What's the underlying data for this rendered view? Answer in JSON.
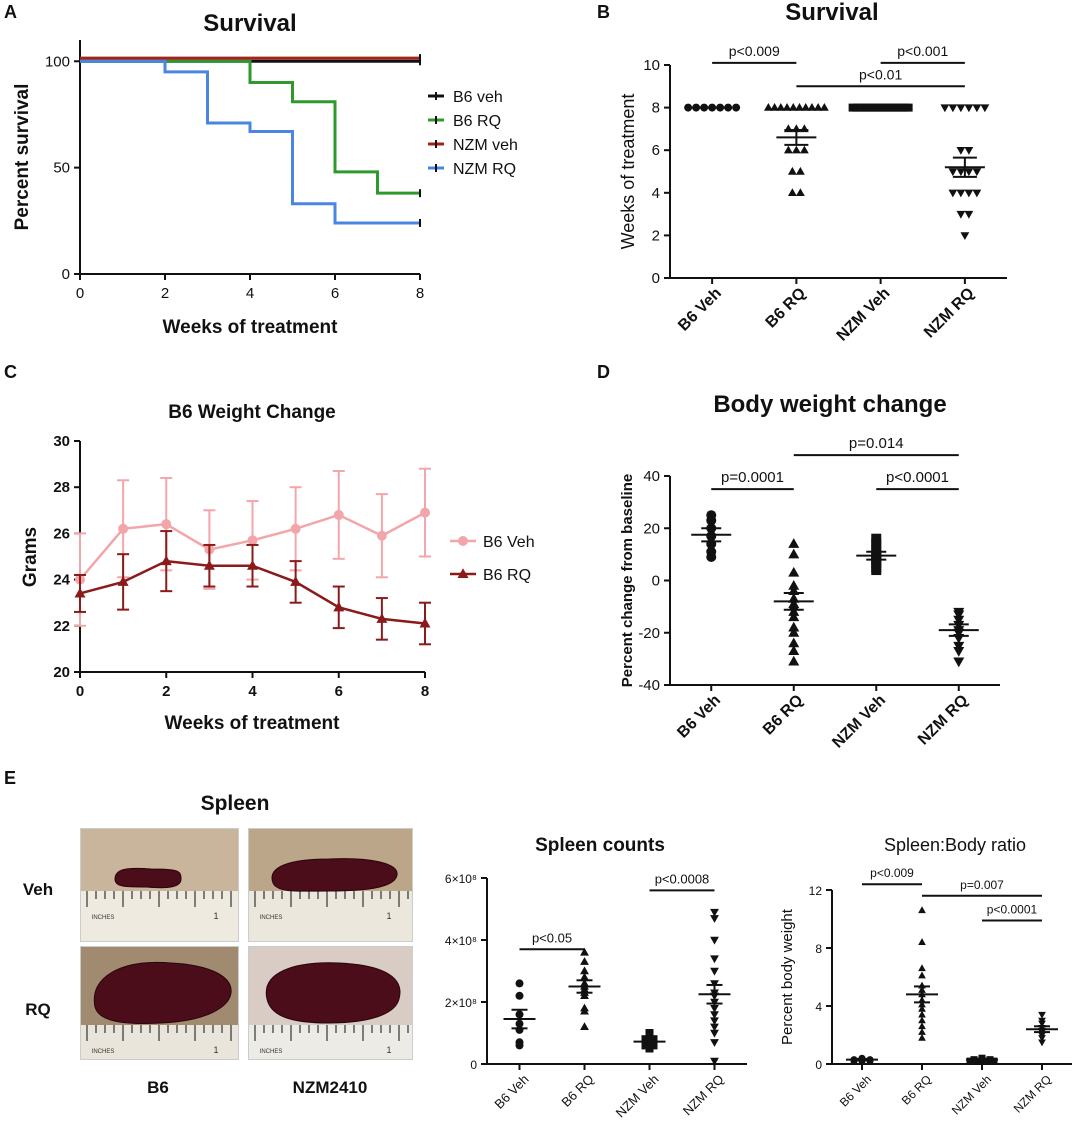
{
  "chart_data": [
    {
      "panel": "A",
      "type": "line",
      "step": true,
      "title": "Survival",
      "xlabel": "Weeks of treatment",
      "ylabel": "Percent survival",
      "xlim": [
        0,
        8
      ],
      "ylim": [
        0,
        110
      ],
      "xticks": [
        0,
        2,
        4,
        6,
        8
      ],
      "yticks": [
        0,
        50,
        100
      ],
      "legend_position": "right",
      "series": [
        {
          "name": "B6 veh",
          "color": "#111111",
          "x": [
            0,
            8
          ],
          "y": [
            100,
            100
          ]
        },
        {
          "name": "B6 RQ",
          "color": "#2e9a2e",
          "x": [
            0,
            4,
            5,
            6,
            7,
            8
          ],
          "y": [
            100,
            90,
            81,
            48,
            38,
            38
          ]
        },
        {
          "name": "NZM veh",
          "color": "#a3231b",
          "x": [
            0,
            8
          ],
          "y": [
            101.5,
            101.5
          ]
        },
        {
          "name": "NZM RQ",
          "color": "#4a86e0",
          "x": [
            0,
            2,
            3,
            4,
            5,
            6,
            8
          ],
          "y": [
            100,
            95,
            71,
            67,
            33,
            24,
            24
          ]
        }
      ]
    },
    {
      "panel": "B",
      "type": "scatter",
      "title": "Survival",
      "ylabel": "Weeks of treatment",
      "ylim": [
        0,
        10
      ],
      "yticks": [
        0,
        2,
        4,
        6,
        8,
        10
      ],
      "categories": [
        "B6 Veh",
        "B6 RQ",
        "NZM Veh",
        "NZM RQ"
      ],
      "markers": [
        "circle",
        "triangle",
        "square",
        "triangle-down"
      ],
      "values": [
        [
          8,
          8,
          8,
          8,
          8,
          8,
          8
        ],
        [
          8,
          8,
          8,
          8,
          8,
          8,
          8,
          8,
          8,
          8,
          7,
          7,
          7,
          6,
          6,
          6,
          5,
          5,
          4,
          4
        ],
        [
          8,
          8,
          8,
          8,
          8,
          8,
          8,
          8,
          8,
          8,
          8,
          8,
          8,
          8,
          8,
          8
        ],
        [
          8,
          8,
          8,
          8,
          8,
          8,
          6,
          6,
          5,
          5,
          5,
          5,
          4,
          4,
          4,
          4,
          3,
          3,
          2
        ]
      ],
      "means": [
        8,
        6.6,
        8,
        5.2
      ],
      "sems": [
        0,
        0.35,
        0,
        0.45
      ],
      "significance": [
        {
          "from": 0,
          "to": 1,
          "y": 10.1,
          "label": "p<0.009"
        },
        {
          "from": 2,
          "to": 3,
          "y": 10.1,
          "label": "p<0.001"
        },
        {
          "from": 1,
          "to": 3,
          "y": 9.0,
          "label": "p<0.01"
        }
      ]
    },
    {
      "panel": "C",
      "type": "line",
      "title": "B6 Weight Change",
      "xlabel": "Weeks of treatment",
      "ylabel": "Grams",
      "xlim": [
        0,
        8
      ],
      "ylim": [
        20,
        30
      ],
      "xticks": [
        0,
        2,
        4,
        6,
        8
      ],
      "yticks": [
        20,
        22,
        24,
        26,
        28,
        30
      ],
      "legend_position": "right",
      "series": [
        {
          "name": "B6 Veh",
          "color": "#f3a6aa",
          "marker": "circle",
          "x": [
            0,
            1,
            2,
            3,
            4,
            5,
            6,
            7,
            8
          ],
          "y": [
            24,
            26.2,
            26.4,
            25.3,
            25.7,
            26.2,
            26.8,
            25.9,
            26.9
          ],
          "err": [
            2,
            2.1,
            2,
            1.7,
            1.7,
            1.8,
            1.9,
            1.8,
            1.9
          ]
        },
        {
          "name": "B6 RQ",
          "color": "#8b1a1a",
          "marker": "triangle",
          "x": [
            0,
            1,
            2,
            3,
            4,
            5,
            6,
            7,
            8
          ],
          "y": [
            23.4,
            23.9,
            24.8,
            24.6,
            24.6,
            23.9,
            22.8,
            22.3,
            22.1
          ],
          "err": [
            0.8,
            1.2,
            1.3,
            0.9,
            0.9,
            0.9,
            0.9,
            0.9,
            0.9
          ]
        }
      ]
    },
    {
      "panel": "D",
      "type": "scatter",
      "title": "Body weight change",
      "ylabel": "Percent change from baseline",
      "ylim": [
        -40,
        40
      ],
      "yticks": [
        -40,
        -20,
        0,
        20,
        40
      ],
      "categories": [
        "B6 Veh",
        "B6 RQ",
        "NZM Veh",
        "NZM RQ"
      ],
      "markers": [
        "circle",
        "triangle",
        "square",
        "triangle-down"
      ],
      "values": [
        [
          25,
          23,
          20,
          17,
          14,
          11,
          9
        ],
        [
          14,
          10,
          3,
          -2,
          -4,
          -7,
          -9,
          -10,
          -12,
          -14,
          -18,
          -20,
          -24,
          -27,
          -31
        ],
        [
          16,
          14,
          12,
          10,
          9,
          8,
          7,
          5,
          4
        ],
        [
          -12,
          -13,
          -15,
          -17,
          -19,
          -20,
          -22,
          -25,
          -27,
          -31
        ]
      ],
      "means": [
        17.5,
        -8,
        9.5,
        -19
      ],
      "sems": [
        2.5,
        3.2,
        1.5,
        2.2
      ],
      "significance": [
        {
          "from": 0,
          "to": 1,
          "y": 35,
          "label": "p=0.0001"
        },
        {
          "from": 2,
          "to": 3,
          "y": 35,
          "label": "p<0.0001"
        },
        {
          "from": 1,
          "to": 3,
          "y": 48,
          "label": "p=0.014"
        }
      ]
    },
    {
      "panel": "E-counts",
      "type": "scatter",
      "title": "Spleen counts",
      "ylim": [
        0,
        6
      ],
      "ytick_labels": [
        "0",
        "2×10⁸",
        "4×10⁸",
        "6×10⁸"
      ],
      "categories": [
        "B6 Veh",
        "B6 RQ",
        "NZM Veh",
        "NZM RQ"
      ],
      "markers": [
        "circle",
        "triangle",
        "square",
        "triangle-down"
      ],
      "values": [
        [
          2.6,
          2.2,
          1.6,
          1.3,
          1.1,
          0.7,
          0.6
        ],
        [
          3.6,
          3.3,
          3.0,
          2.8,
          2.6,
          2.5,
          2.4,
          2.3,
          2.2,
          1.8,
          1.7,
          1.2
        ],
        [
          1.0,
          0.8,
          0.8,
          0.7,
          0.7,
          0.6,
          0.6,
          0.5
        ],
        [
          4.9,
          4.7,
          4.0,
          3.4,
          3.0,
          2.6,
          2.3,
          2.2,
          2.0,
          1.8,
          1.6,
          1.4,
          1.2,
          1.0,
          0.7,
          0.1
        ]
      ],
      "means": [
        1.45,
        2.5,
        0.72,
        2.25
      ],
      "sems": [
        0.3,
        0.2,
        0.08,
        0.3
      ],
      "significance": [
        {
          "from": 0,
          "to": 1,
          "y": 3.7,
          "label": "p<0.05"
        },
        {
          "from": 2,
          "to": 3,
          "y": 5.6,
          "label": "p<0.0008"
        }
      ]
    },
    {
      "panel": "E-ratio",
      "type": "scatter",
      "title": "Spleen:Body ratio",
      "ylabel": "Percent body weight",
      "ylim": [
        0,
        12
      ],
      "yticks": [
        0,
        4,
        8,
        12
      ],
      "categories": [
        "B6 Veh",
        "B6 RQ",
        "NZM Veh",
        "NZM RQ"
      ],
      "markers": [
        "circle",
        "triangle",
        "square",
        "triangle-down"
      ],
      "values": [
        [
          0.4,
          0.3,
          0.3,
          0.2,
          0.2,
          0.2,
          0.3
        ],
        [
          10.6,
          8.4,
          6.6,
          6.1,
          5.4,
          5.1,
          4.8,
          4.4,
          4.1,
          3.8,
          3.4,
          3.0,
          2.6,
          2.2,
          1.8
        ],
        [
          0.4,
          0.3,
          0.3,
          0.2,
          0.2,
          0.2,
          0.3,
          0.2
        ],
        [
          3.4,
          3.0,
          2.8,
          2.5,
          2.3,
          2.2,
          2.0,
          1.8,
          1.5
        ]
      ],
      "means": [
        0.3,
        4.8,
        0.3,
        2.4
      ],
      "sems": [
        0.05,
        0.55,
        0.04,
        0.2
      ],
      "significance": [
        {
          "from": 0,
          "to": 1,
          "y": 12.4,
          "label": "p<0.009"
        },
        {
          "from": 1,
          "to": 3,
          "y": 11.6,
          "label": "p=0.007"
        },
        {
          "from": 2,
          "to": 3,
          "y": 9.9,
          "label": "p<0.0001"
        }
      ]
    }
  ],
  "panel_labels": {
    "a": "A",
    "b": "B",
    "c": "C",
    "d": "D",
    "e": "E"
  },
  "spleen_photos": {
    "title": "Spleen",
    "row_labels": [
      "Veh",
      "RQ"
    ],
    "column_labels": [
      "B6",
      "NZM2410"
    ],
    "ruler_text": "INCHES",
    "ruler_mark": "1"
  }
}
